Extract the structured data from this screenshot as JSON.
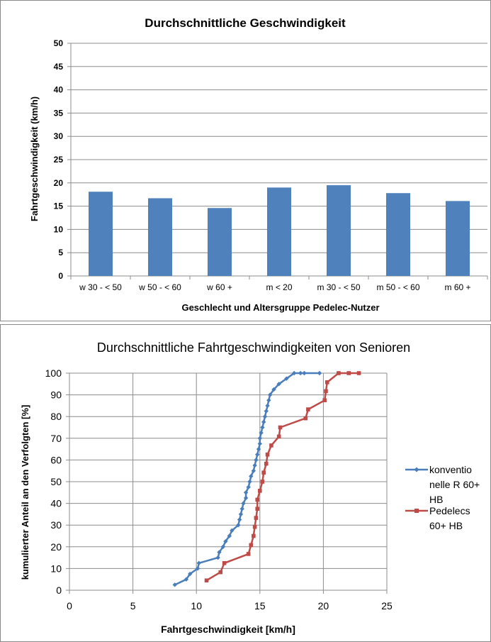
{
  "chart_data": [
    {
      "type": "bar",
      "title": "Durchschnittliche Geschwindigkeit",
      "xlabel": "Geschlecht und Altersgruppe Pedelec-Nutzer",
      "ylabel": "Fahrtgeschwindigkeit (km/h)",
      "ylim": [
        0,
        50
      ],
      "yticks": [
        "0",
        "5",
        "10",
        "15",
        "20",
        "25",
        "30",
        "35",
        "40",
        "45",
        "50"
      ],
      "grid": true,
      "categories": [
        "w 30 - < 50",
        "w 50 - < 60",
        "w 60 +",
        "m < 20",
        "m 30 - < 50",
        "m 50 - < 60",
        "m 60 +"
      ],
      "values": [
        18.1,
        16.7,
        14.6,
        19.0,
        19.5,
        17.8,
        16.1
      ],
      "color": "#4f81bd"
    },
    {
      "type": "line",
      "title": "Durchschnittliche Fahrtgeschwindigkeiten von Senioren",
      "xlabel": "Fahrtgeschwindigkeit [km/h]",
      "ylabel": "kumulierter Anteil an den Verfolgten [%]",
      "xlim": [
        0,
        25
      ],
      "ylim": [
        0,
        100
      ],
      "xticks": [
        "0",
        "5",
        "10",
        "15",
        "20",
        "25"
      ],
      "yticks": [
        "0",
        "10",
        "20",
        "30",
        "40",
        "50",
        "60",
        "70",
        "80",
        "90",
        "100"
      ],
      "grid": true,
      "legend": "right",
      "series": [
        {
          "name_lines": [
            "konventio",
            "nelle R 60+",
            "HB"
          ],
          "color": "#4a7ebb",
          "marker": "diamond",
          "x": [
            8.3,
            9.2,
            9.5,
            10.1,
            10.2,
            11.7,
            11.8,
            12.1,
            12.3,
            12.6,
            12.8,
            13.3,
            13.4,
            13.5,
            13.6,
            13.7,
            13.9,
            13.9,
            14.1,
            14.2,
            14.3,
            14.5,
            14.6,
            14.7,
            14.8,
            14.9,
            15.0,
            15.0,
            15.1,
            15.2,
            15.3,
            15.4,
            15.5,
            15.6,
            15.7,
            15.8,
            16.1,
            16.5,
            17.1,
            17.7,
            18.2,
            18.5,
            19.7
          ],
          "y": [
            2.5,
            5,
            7.5,
            10,
            12.5,
            15,
            17.5,
            20,
            22.5,
            25,
            27.5,
            30,
            32.5,
            35,
            37.5,
            40,
            42.5,
            45,
            47.5,
            50,
            52.5,
            55,
            57.5,
            60,
            62.5,
            65,
            67.5,
            70,
            72.5,
            75,
            77.5,
            80,
            82.5,
            85,
            87.5,
            90,
            92.5,
            95,
            97.5,
            100,
            100,
            100,
            100
          ]
        },
        {
          "name_lines": [
            "Pedelecs",
            "60+ HB"
          ],
          "color": "#be4b48",
          "marker": "square",
          "x": [
            10.8,
            11.9,
            12.2,
            14.1,
            14.3,
            14.5,
            14.6,
            14.7,
            14.8,
            14.8,
            15.0,
            15.2,
            15.3,
            15.5,
            15.6,
            15.9,
            16.5,
            16.6,
            18.6,
            18.8,
            20.1,
            20.2,
            20.3,
            21.2,
            22.0,
            22.8
          ],
          "y": [
            4.5,
            8.3,
            12.5,
            16.7,
            20.8,
            25,
            29.2,
            33.3,
            37.5,
            41.7,
            45.8,
            50,
            54.2,
            58.3,
            62.5,
            66.7,
            70.8,
            75,
            79.2,
            83.3,
            87.5,
            91.7,
            95.8,
            100,
            100,
            100
          ]
        }
      ]
    }
  ]
}
